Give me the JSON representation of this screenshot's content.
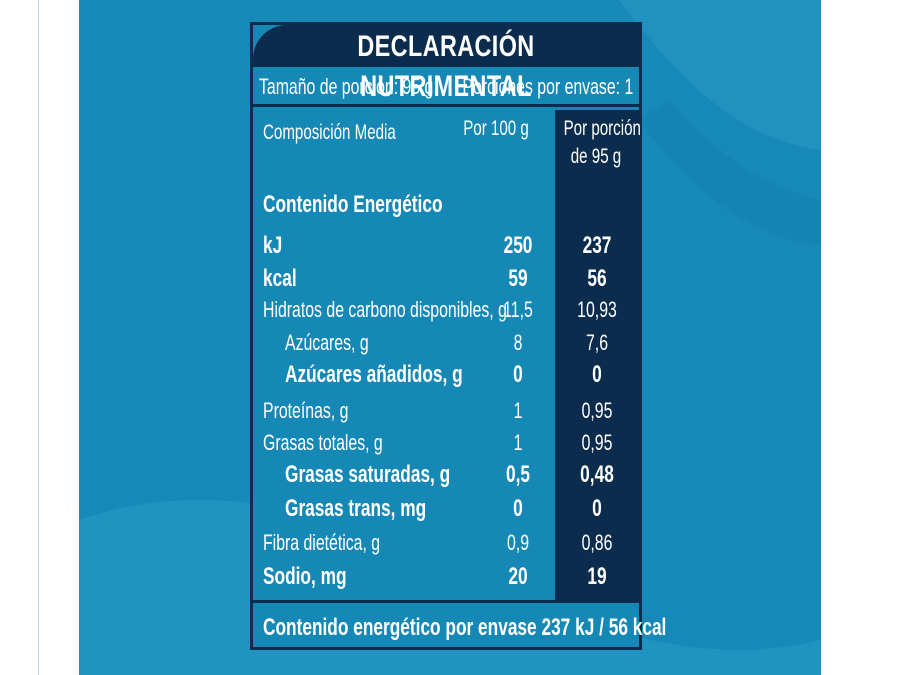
{
  "colors": {
    "panel": "#1689b9",
    "dark_navy": "#0b2c4c",
    "text": "#ffffff"
  },
  "label": {
    "title": "DECLARACIÓN NUTRIMENTAL",
    "serving_size": "Tamaño de porción: 95 g",
    "servings_per_container": "Porciones por envase: 1",
    "col_composition": "Composición Media",
    "col_per_100": "Por 100 g",
    "col_per_portion_line1": "Por porción",
    "col_per_portion_line2": "de 95 g",
    "energy_title": "Contenido Energético",
    "rows": [
      {
        "name": "kJ",
        "per100": "250",
        "perPortion": "237",
        "bold": true,
        "indent": false
      },
      {
        "name": "kcal",
        "per100": "59",
        "perPortion": "56",
        "bold": true,
        "indent": false
      },
      {
        "name": "Hidratos de carbono disponibles, g",
        "per100": "11,5",
        "perPortion": "10,93",
        "bold": false,
        "indent": false
      },
      {
        "name": "Azúcares, g",
        "per100": "8",
        "perPortion": "7,6",
        "bold": false,
        "indent": true
      },
      {
        "name": "Azúcares añadidos, g",
        "per100": "0",
        "perPortion": "0",
        "bold": true,
        "indent": true
      },
      {
        "name": "Proteínas, g",
        "per100": "1",
        "perPortion": "0,95",
        "bold": false,
        "indent": false
      },
      {
        "name": "Grasas totales, g",
        "per100": "1",
        "perPortion": "0,95",
        "bold": false,
        "indent": false
      },
      {
        "name": "Grasas saturadas, g",
        "per100": "0,5",
        "perPortion": "0,48",
        "bold": true,
        "indent": true
      },
      {
        "name": "Grasas trans, mg",
        "per100": "0",
        "perPortion": "0",
        "bold": true,
        "indent": true
      },
      {
        "name": "Fibra dietética, g",
        "per100": "0,9",
        "perPortion": "0,86",
        "bold": false,
        "indent": false
      },
      {
        "name": "Sodio, mg",
        "per100": "20",
        "perPortion": "19",
        "bold": true,
        "indent": false
      }
    ],
    "footer": "Contenido energético por envase 237 kJ / 56 kcal"
  }
}
